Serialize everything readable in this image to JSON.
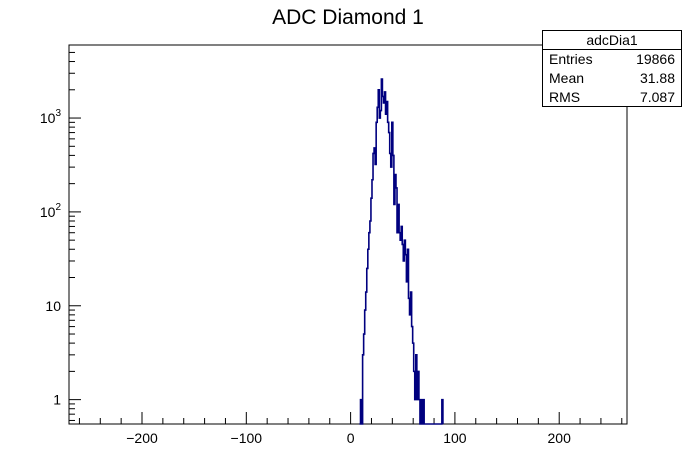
{
  "chart_data": {
    "type": "bar",
    "title": "ADC Diamond 1",
    "xlabel": "",
    "ylabel": "",
    "xlim": [
      -270,
      265
    ],
    "ylim": [
      0.55,
      6000
    ],
    "yscale": "log",
    "x_ticks": [
      -200,
      -100,
      0,
      100,
      200
    ],
    "x_tick_labels": [
      "−200",
      "−100",
      "0",
      "100",
      "200"
    ],
    "y_ticks": [
      1,
      10,
      100,
      1000
    ],
    "y_tick_labels": [
      {
        "base": "1",
        "sup": ""
      },
      {
        "base": "10",
        "sup": ""
      },
      {
        "base": "10",
        "sup": "2"
      },
      {
        "base": "10",
        "sup": "3"
      }
    ],
    "line_color": "#00007f",
    "x": [
      9,
      10,
      11,
      12,
      13,
      14,
      15,
      16,
      17,
      18,
      19,
      20,
      21,
      22,
      23,
      24,
      25,
      26,
      27,
      28,
      29,
      30,
      31,
      32,
      33,
      34,
      35,
      36,
      37,
      38,
      39,
      40,
      41,
      42,
      43,
      44,
      45,
      46,
      47,
      48,
      49,
      50,
      51,
      52,
      53,
      54,
      55,
      56,
      57,
      58,
      59,
      60,
      61,
      62,
      63,
      64,
      65,
      66,
      67,
      68,
      69,
      70,
      71,
      72,
      73,
      74,
      75,
      76,
      77,
      78,
      79,
      80,
      81,
      82,
      83,
      84,
      85,
      86,
      87,
      88
    ],
    "values": [
      0,
      1,
      0,
      3,
      5,
      9,
      14,
      25,
      40,
      60,
      80,
      140,
      220,
      420,
      480,
      320,
      900,
      1300,
      2000,
      1000,
      1200,
      2600,
      1700,
      1450,
      1900,
      1100,
      1500,
      900,
      700,
      420,
      300,
      900,
      400,
      120,
      250,
      180,
      60,
      120,
      60,
      50,
      70,
      45,
      30,
      50,
      35,
      18,
      40,
      12,
      8,
      14,
      6,
      4,
      2,
      1,
      3,
      1,
      2,
      1,
      0,
      1,
      0,
      1,
      0,
      0,
      0,
      0,
      0,
      0,
      0,
      0,
      0,
      0,
      0,
      0,
      0,
      0,
      0,
      0,
      0,
      1
    ],
    "stats": {
      "name": "adcDia1",
      "rows": [
        {
          "label": "Entries",
          "value": "19866"
        },
        {
          "label": "Mean",
          "value": "31.88"
        },
        {
          "label": "RMS",
          "value": "7.087"
        }
      ]
    }
  }
}
